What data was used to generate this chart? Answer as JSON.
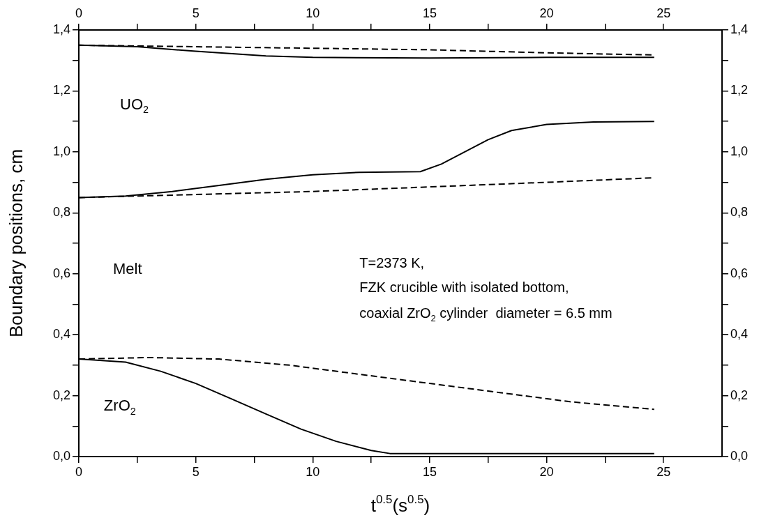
{
  "chart_data": {
    "type": "line",
    "xlabel": "t$^{0.5}$(s$^{0.5}$)",
    "ylabel": "Boundary positions, cm",
    "annotations": [
      "UO$_{2}$",
      "Melt",
      "ZrO$_{2}$",
      "T=2373 K,",
      "FZK crucible with isolated bottom,",
      "coaxial ZrO$_{2}$ cylinder  diameter = 6.5 mm"
    ],
    "xlim": [
      0,
      27.5
    ],
    "xticks": [
      0,
      {
        "value": 2.5,
        "label": null
      },
      5,
      {
        "value": 7.5,
        "label": null
      },
      10,
      {
        "value": 12.5,
        "label": null
      },
      15,
      {
        "value": 17.5,
        "label": null
      },
      20,
      {
        "value": 22.5,
        "label": null
      },
      25
    ],
    "x2lim": [
      0,
      27.5
    ],
    "x2ticks": [
      0,
      {
        "value": 2.5,
        "label": null
      },
      5,
      {
        "value": 7.5,
        "label": null
      },
      10,
      {
        "value": 12.5,
        "label": null
      },
      15,
      {
        "value": 17.5,
        "label": null
      },
      20,
      {
        "value": 22.5,
        "label": null
      },
      25
    ],
    "ylim": [
      0,
      1.4
    ],
    "yticks": [
      {
        "value": 0,
        "label": "0,0"
      },
      {
        "value": 0.1,
        "label": null
      },
      {
        "value": 0.2,
        "label": "0,2"
      },
      {
        "value": 0.3,
        "label": null
      },
      {
        "value": 0.4,
        "label": "0,4"
      },
      {
        "value": 0.5,
        "label": null
      },
      {
        "value": 0.6,
        "label": "0,6"
      },
      {
        "value": 0.7,
        "label": null
      },
      {
        "value": 0.8,
        "label": "0,8"
      },
      {
        "value": 0.9,
        "label": null
      },
      {
        "value": 1.0,
        "label": "1,0"
      },
      {
        "value": 1.1,
        "label": null
      },
      {
        "value": 1.2,
        "label": "1,2"
      },
      {
        "value": 1.3,
        "label": null
      },
      {
        "value": 1.4,
        "label": "1,4"
      }
    ],
    "y2lim": [
      0,
      1.4
    ],
    "y2ticks": [
      {
        "value": 0,
        "label": "0,0"
      },
      {
        "value": 0.1,
        "label": null
      },
      {
        "value": 0.2,
        "label": "0,2"
      },
      {
        "value": 0.3,
        "label": null
      },
      {
        "value": 0.4,
        "label": "0,4"
      },
      {
        "value": 0.5,
        "label": null
      },
      {
        "value": 0.6,
        "label": "0,6"
      },
      {
        "value": 0.7,
        "label": null
      },
      {
        "value": 0.8,
        "label": "0,8"
      },
      {
        "value": 0.9,
        "label": null
      },
      {
        "value": 1.0,
        "label": "1,0"
      },
      {
        "value": 1.1,
        "label": null
      },
      {
        "value": 1.2,
        "label": "1,2"
      },
      {
        "value": 1.3,
        "label": null
      },
      {
        "value": 1.4,
        "label": "1,4"
      }
    ],
    "grid": false,
    "legend": false,
    "marker": "none",
    "series": [
      {
        "color": "#000000",
        "line_style": "solid",
        "x": [
          0,
          2.5,
          5,
          8,
          10,
          15,
          20,
          24.6
        ],
        "values": [
          1.35,
          1.345,
          1.33,
          1.315,
          1.31,
          1.308,
          1.31,
          1.31
        ]
      },
      {
        "color": "#000000",
        "line_style": "dashed",
        "x": [
          0,
          5,
          10,
          15,
          20,
          24.6
        ],
        "values": [
          1.35,
          1.345,
          1.34,
          1.335,
          1.325,
          1.318
        ]
      },
      {
        "color": "#000000",
        "line_style": "solid",
        "x": [
          0,
          2,
          4,
          6,
          8,
          10,
          12,
          14.6,
          15.5,
          16.5,
          17.5,
          18.5,
          20,
          22,
          24.6
        ],
        "values": [
          0.85,
          0.855,
          0.87,
          0.89,
          0.91,
          0.925,
          0.933,
          0.935,
          0.96,
          1.0,
          1.04,
          1.07,
          1.09,
          1.098,
          1.1
        ]
      },
      {
        "color": "#000000",
        "line_style": "dashed",
        "x": [
          0,
          5,
          10,
          15,
          20,
          24.6
        ],
        "values": [
          0.85,
          0.86,
          0.87,
          0.885,
          0.9,
          0.915
        ]
      },
      {
        "color": "#000000",
        "line_style": "solid",
        "x": [
          0,
          2,
          3.5,
          5,
          6.5,
          8,
          9.5,
          11,
          12.5,
          13.3,
          24.6
        ],
        "values": [
          0.32,
          0.31,
          0.28,
          0.24,
          0.19,
          0.14,
          0.09,
          0.05,
          0.02,
          0.01,
          0.01
        ]
      },
      {
        "color": "#000000",
        "line_style": "dashed",
        "x": [
          0,
          3,
          6,
          9,
          12,
          15,
          18,
          21,
          24.6
        ],
        "values": [
          0.32,
          0.325,
          0.32,
          0.3,
          0.27,
          0.24,
          0.21,
          0.18,
          0.155
        ]
      }
    ]
  }
}
